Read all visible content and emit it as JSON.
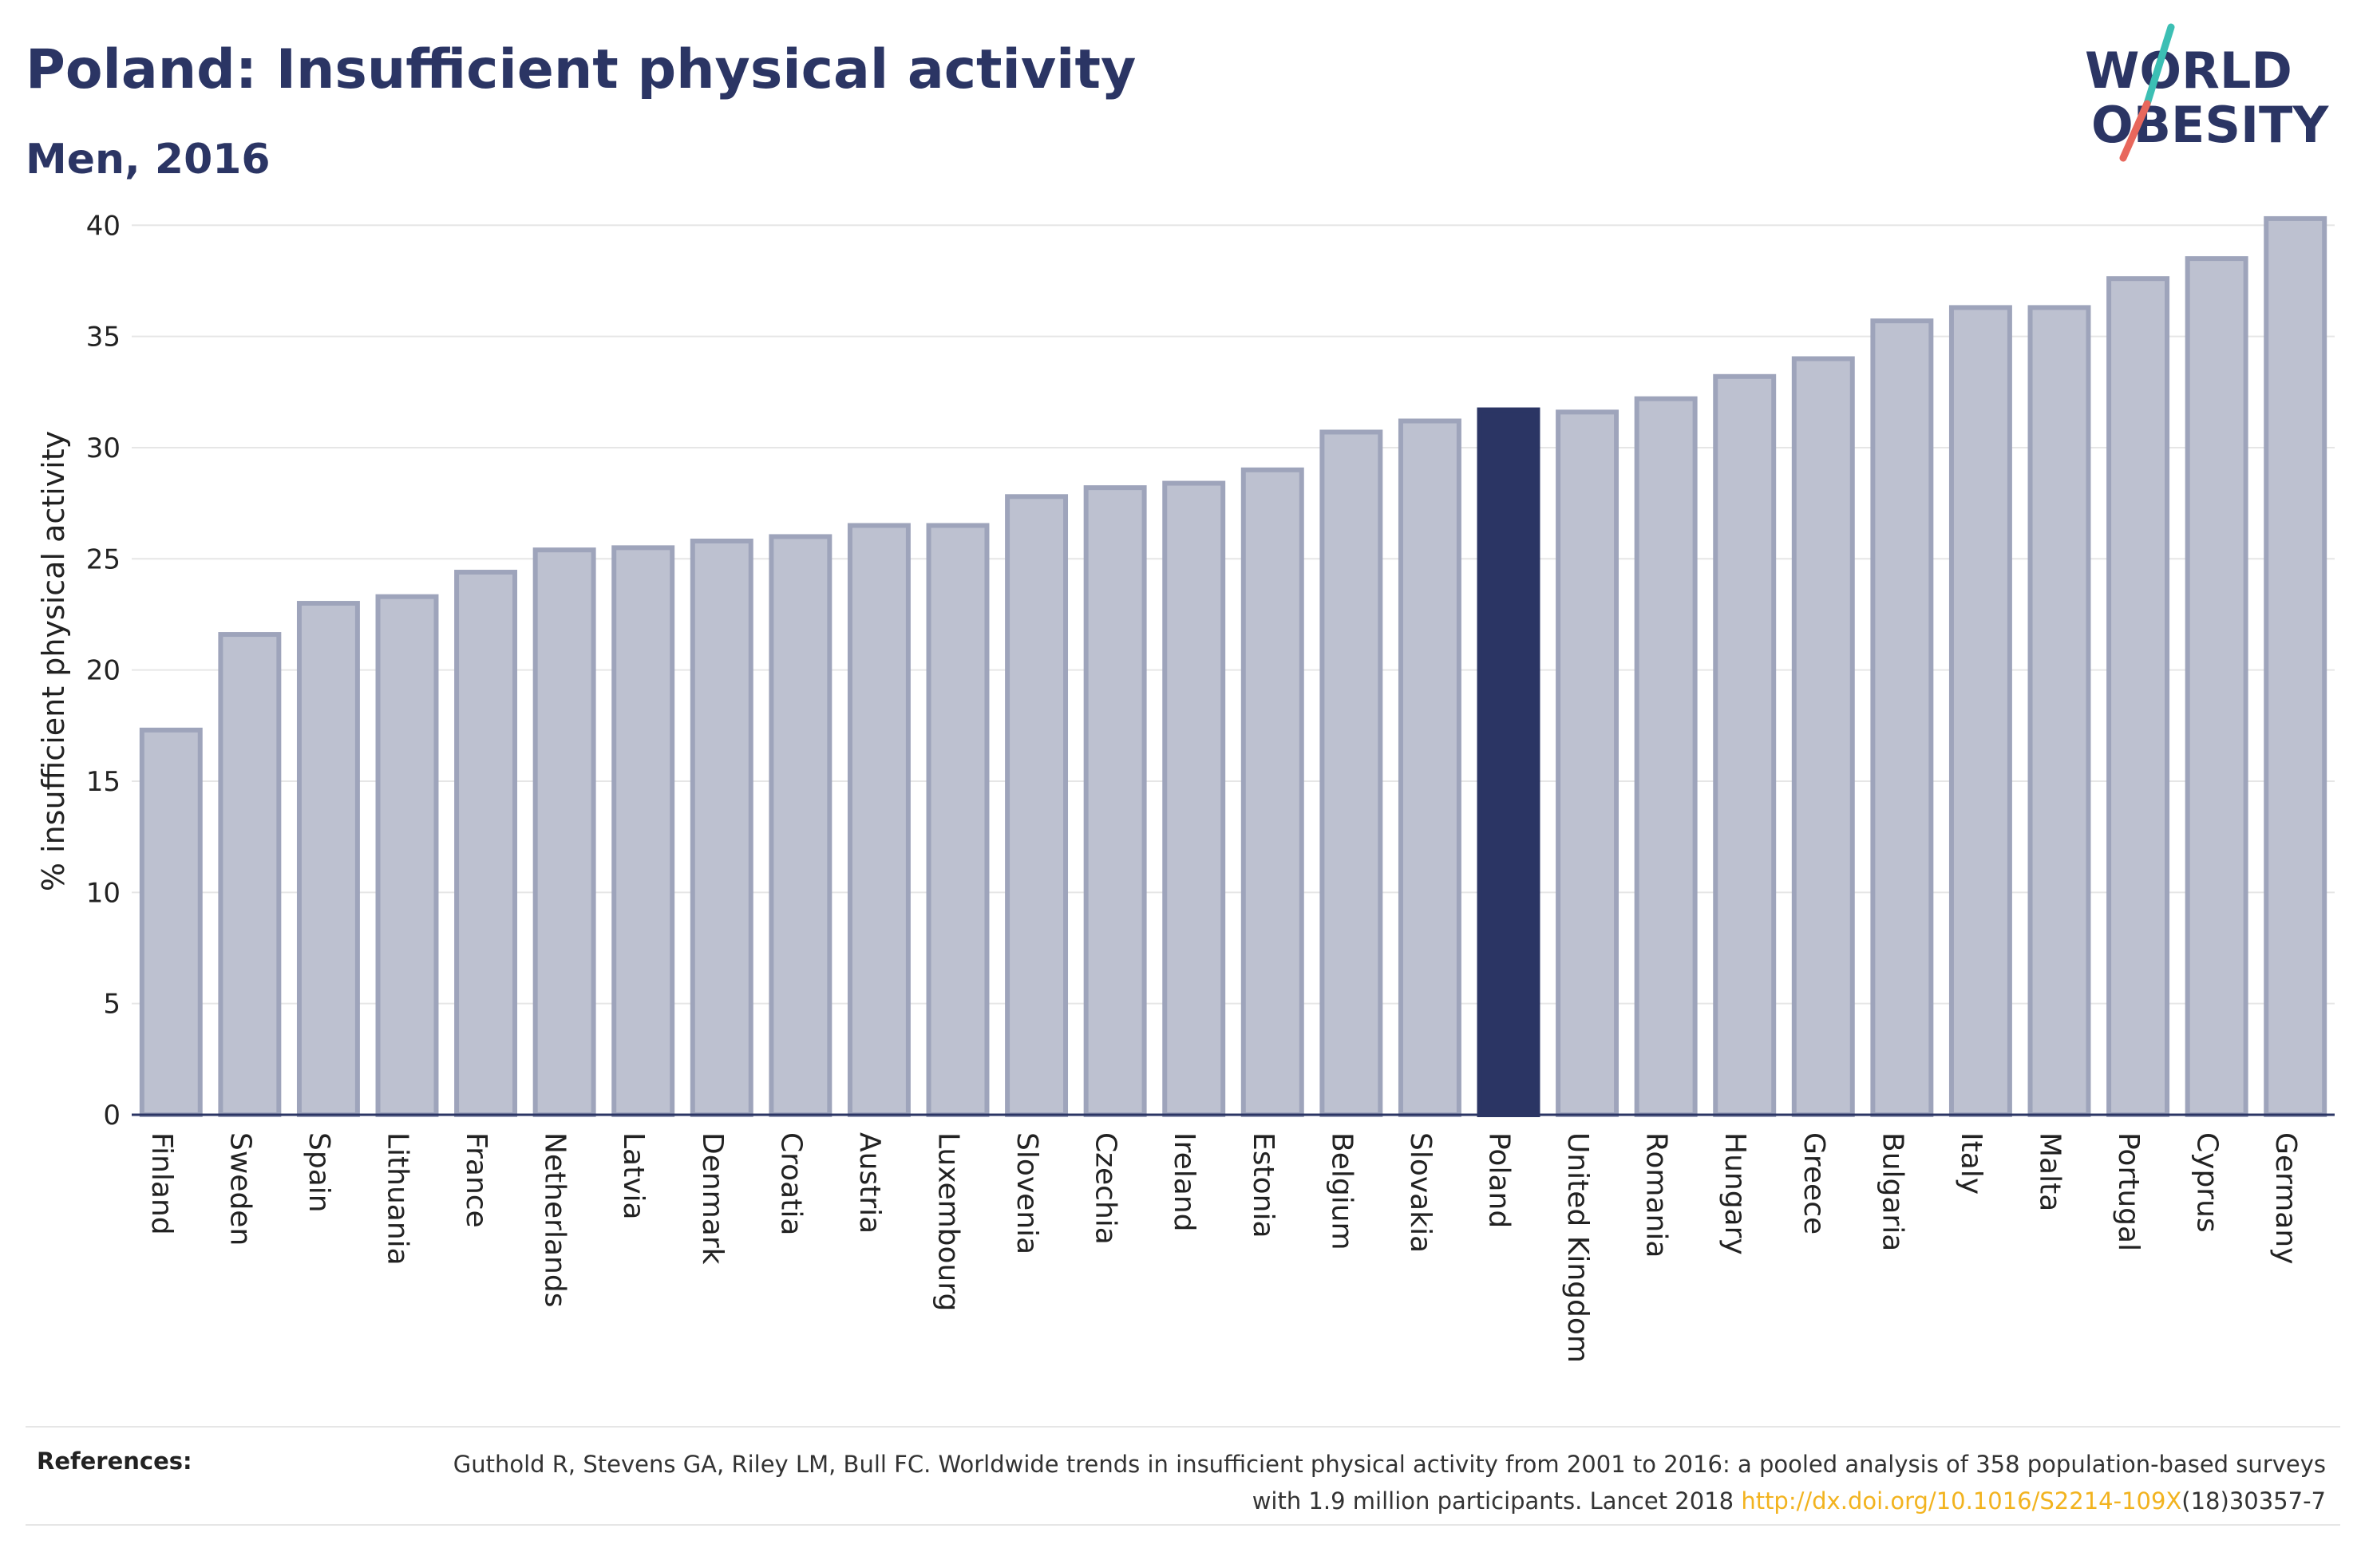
{
  "header": {
    "title": "Poland: Insufficient physical activity",
    "subtitle": "Men, 2016"
  },
  "logo": {
    "line1": "WORLD",
    "line2": "OBESITY",
    "accent_colors": [
      "#3cbfb4",
      "#e8675c"
    ]
  },
  "colors": {
    "bar_fill": "#bdc1d0",
    "bar_stroke": "#9ea4bb",
    "highlight": "#2b3564",
    "text": "#2b3564",
    "link": "#f2b31f"
  },
  "chart_data": {
    "type": "bar",
    "title": "Poland: Insufficient physical activity",
    "subtitle": "Men, 2016",
    "xlabel": "",
    "ylabel": "% insufficient physical activity",
    "ylim": [
      0,
      40.8
    ],
    "yticks": [
      0,
      5,
      10,
      15,
      20,
      25,
      30,
      35,
      40
    ],
    "grid": true,
    "highlight": "Poland",
    "categories": [
      "Finland",
      "Sweden",
      "Spain",
      "Lithuania",
      "France",
      "Netherlands",
      "Latvia",
      "Denmark",
      "Croatia",
      "Austria",
      "Luxembourg",
      "Slovenia",
      "Czechia",
      "Ireland",
      "Estonia",
      "Belgium",
      "Slovakia",
      "Poland",
      "United Kingdom",
      "Romania",
      "Hungary",
      "Greece",
      "Bulgaria",
      "Italy",
      "Malta",
      "Portugal",
      "Cyprus",
      "Germany"
    ],
    "values": [
      17.3,
      21.6,
      23.0,
      23.3,
      24.4,
      25.4,
      25.5,
      25.8,
      26.0,
      26.5,
      26.5,
      27.8,
      28.2,
      28.4,
      29.0,
      30.7,
      31.2,
      31.7,
      31.6,
      32.2,
      33.2,
      34.0,
      35.7,
      36.3,
      36.3,
      37.6,
      38.5,
      40.3
    ]
  },
  "references": {
    "label": "References:",
    "text_before": "Guthold R, Stevens GA, Riley LM, Bull FC. Worldwide trends in insufficient physical activity from 2001 to 2016: a pooled analysis of 358 population-based surveys with 1.9 million participants. Lancet 2018 ",
    "link_text": "http://dx.doi.org/10.1016/S2214-109X",
    "text_after": "(18)30357-7"
  }
}
